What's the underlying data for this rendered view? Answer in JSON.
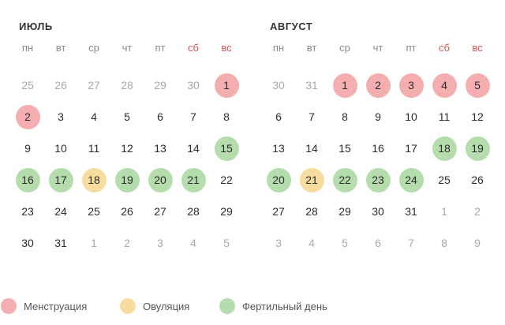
{
  "colors": {
    "menstruation": "#f5aeb0",
    "ovulation": "#f6dc9f",
    "fertile": "#b5dcac",
    "weekend": "#d9534f",
    "other_month_text": "#a8a8a8"
  },
  "weekdays": [
    "пн",
    "вт",
    "ср",
    "чт",
    "пт",
    "сб",
    "вс"
  ],
  "weekend_indices": [
    5,
    6
  ],
  "months": [
    {
      "name": "Июль",
      "days": [
        {
          "d": "25",
          "other": true
        },
        {
          "d": "26",
          "other": true
        },
        {
          "d": "27",
          "other": true
        },
        {
          "d": "28",
          "other": true
        },
        {
          "d": "29",
          "other": true
        },
        {
          "d": "30",
          "other": true
        },
        {
          "d": "1",
          "type": "menstruation"
        },
        {
          "d": "2",
          "type": "menstruation"
        },
        {
          "d": "3"
        },
        {
          "d": "4"
        },
        {
          "d": "5"
        },
        {
          "d": "6"
        },
        {
          "d": "7"
        },
        {
          "d": "8"
        },
        {
          "d": "9"
        },
        {
          "d": "10"
        },
        {
          "d": "11"
        },
        {
          "d": "12"
        },
        {
          "d": "13"
        },
        {
          "d": "14"
        },
        {
          "d": "15",
          "type": "fertile"
        },
        {
          "d": "16",
          "type": "fertile"
        },
        {
          "d": "17",
          "type": "fertile"
        },
        {
          "d": "18",
          "type": "ovulation"
        },
        {
          "d": "19",
          "type": "fertile"
        },
        {
          "d": "20",
          "type": "fertile"
        },
        {
          "d": "21",
          "type": "fertile"
        },
        {
          "d": "22"
        },
        {
          "d": "23"
        },
        {
          "d": "24"
        },
        {
          "d": "25"
        },
        {
          "d": "26"
        },
        {
          "d": "27"
        },
        {
          "d": "28"
        },
        {
          "d": "29"
        },
        {
          "d": "30"
        },
        {
          "d": "31"
        },
        {
          "d": "1",
          "other": true
        },
        {
          "d": "2",
          "other": true
        },
        {
          "d": "3",
          "other": true
        },
        {
          "d": "4",
          "other": true
        },
        {
          "d": "5",
          "other": true
        }
      ]
    },
    {
      "name": "Август",
      "days": [
        {
          "d": "30",
          "other": true
        },
        {
          "d": "31",
          "other": true
        },
        {
          "d": "1",
          "type": "menstruation"
        },
        {
          "d": "2",
          "type": "menstruation"
        },
        {
          "d": "3",
          "type": "menstruation"
        },
        {
          "d": "4",
          "type": "menstruation"
        },
        {
          "d": "5",
          "type": "menstruation"
        },
        {
          "d": "6"
        },
        {
          "d": "7"
        },
        {
          "d": "8"
        },
        {
          "d": "9"
        },
        {
          "d": "10"
        },
        {
          "d": "11"
        },
        {
          "d": "12"
        },
        {
          "d": "13"
        },
        {
          "d": "14"
        },
        {
          "d": "15"
        },
        {
          "d": "16"
        },
        {
          "d": "17"
        },
        {
          "d": "18",
          "type": "fertile"
        },
        {
          "d": "19",
          "type": "fertile"
        },
        {
          "d": "20",
          "type": "fertile"
        },
        {
          "d": "21",
          "type": "ovulation"
        },
        {
          "d": "22",
          "type": "fertile"
        },
        {
          "d": "23",
          "type": "fertile"
        },
        {
          "d": "24",
          "type": "fertile"
        },
        {
          "d": "25"
        },
        {
          "d": "26"
        },
        {
          "d": "27"
        },
        {
          "d": "28"
        },
        {
          "d": "29"
        },
        {
          "d": "30"
        },
        {
          "d": "31"
        },
        {
          "d": "1",
          "other": true
        },
        {
          "d": "2",
          "other": true
        },
        {
          "d": "3",
          "other": true
        },
        {
          "d": "4",
          "other": true
        },
        {
          "d": "5",
          "other": true
        },
        {
          "d": "6",
          "other": true
        },
        {
          "d": "7",
          "other": true
        },
        {
          "d": "8",
          "other": true
        },
        {
          "d": "9",
          "other": true
        }
      ]
    }
  ],
  "legend": [
    {
      "type": "menstruation",
      "label": "Менструация"
    },
    {
      "type": "ovulation",
      "label": "Овуляция"
    },
    {
      "type": "fertile",
      "label": "Фертильный день"
    }
  ]
}
